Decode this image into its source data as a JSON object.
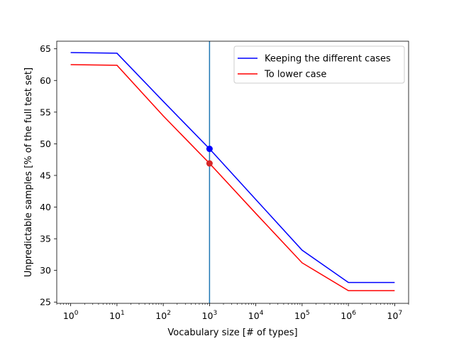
{
  "chart_data": {
    "type": "line",
    "xscale": "log",
    "xlabel": "Vocabulary size [# of types]",
    "ylabel": "Unpredictable samples [% of the full test set]",
    "xlim": [
      0.5,
      20000000
    ],
    "ylim": [
      24.8,
      66.2
    ],
    "x_ticks": [
      1,
      10,
      100,
      1000,
      10000,
      100000,
      1000000,
      10000000
    ],
    "x_tick_labels": [
      {
        "base": "10",
        "exp": "0"
      },
      {
        "base": "10",
        "exp": "1"
      },
      {
        "base": "10",
        "exp": "2"
      },
      {
        "base": "10",
        "exp": "3"
      },
      {
        "base": "10",
        "exp": "4"
      },
      {
        "base": "10",
        "exp": "5"
      },
      {
        "base": "10",
        "exp": "6"
      },
      {
        "base": "10",
        "exp": "7"
      }
    ],
    "y_ticks": [
      25,
      30,
      35,
      40,
      45,
      50,
      55,
      60,
      65
    ],
    "y_tick_labels": [
      "25",
      "30",
      "35",
      "40",
      "45",
      "50",
      "55",
      "60",
      "65"
    ],
    "grid": false,
    "legend_position": "top-right",
    "series": [
      {
        "name": "Keeping the different cases",
        "color": "#0000ff",
        "x": [
          1,
          10,
          100,
          1000,
          10000,
          100000,
          1000000,
          10000000
        ],
        "y": [
          64.4,
          64.3,
          56.7,
          49.2,
          41.2,
          33.2,
          28.1,
          28.1
        ]
      },
      {
        "name": "To lower case",
        "color": "#ff0000",
        "x": [
          1,
          10,
          100,
          1000,
          10000,
          100000,
          1000000,
          10000000
        ],
        "y": [
          62.5,
          62.4,
          54.4,
          46.9,
          39.0,
          31.2,
          26.8,
          26.8
        ]
      }
    ],
    "markers": [
      {
        "x": 1000,
        "y": 49.2,
        "color": "#0000ff"
      },
      {
        "x": 1000,
        "y": 46.9,
        "color": "#d62728"
      }
    ],
    "vline": {
      "x": 1000,
      "color": "#1f77b4"
    }
  }
}
